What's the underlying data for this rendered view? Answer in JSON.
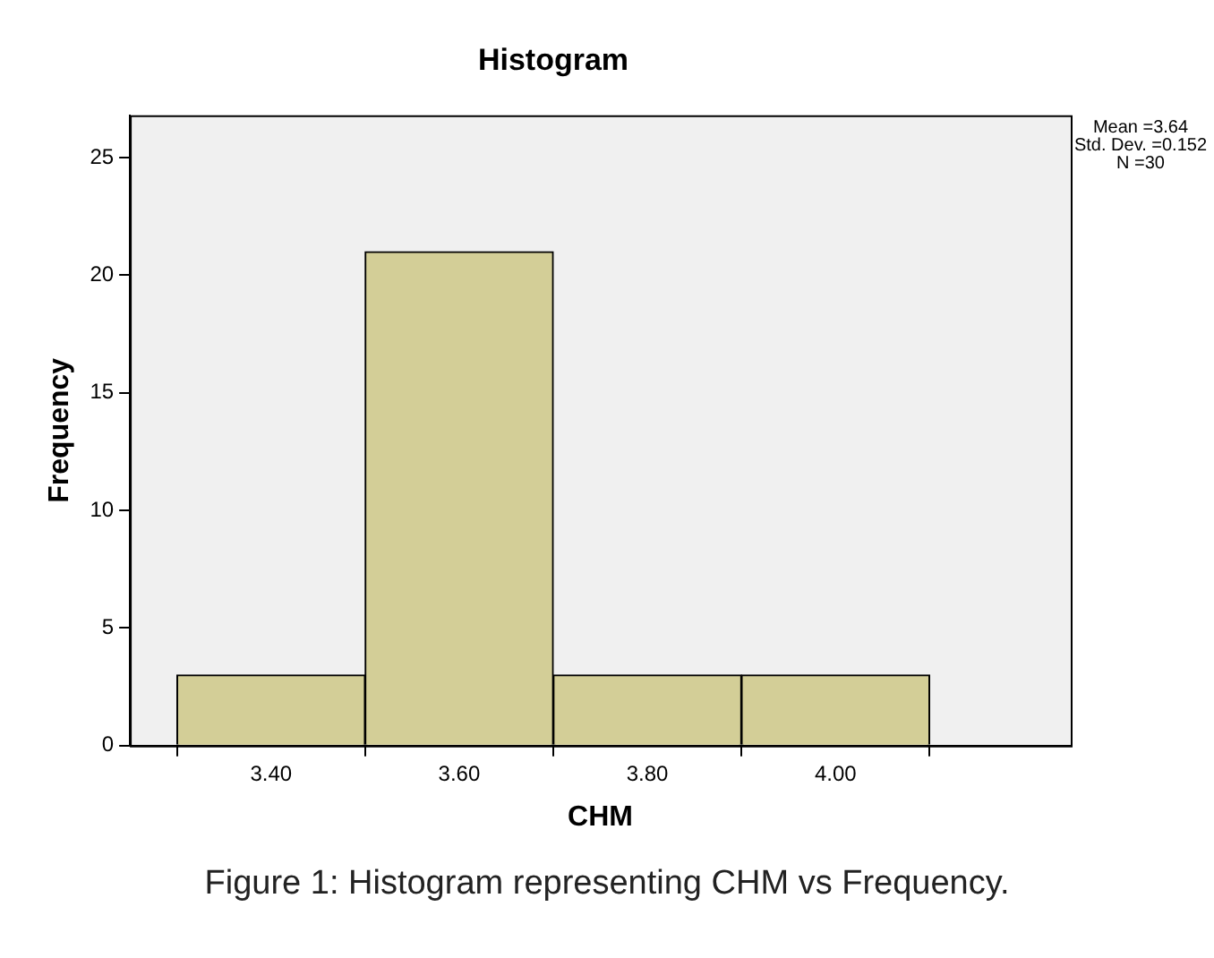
{
  "chart_data": {
    "type": "histogram",
    "title": "Histogram",
    "xlabel": "CHM",
    "ylabel": "Frequency",
    "bins": [
      3.3,
      3.5,
      3.7,
      3.9,
      4.1
    ],
    "values": [
      3,
      21,
      3,
      3
    ],
    "color": "#d3ce97",
    "xlim": [
      3.25,
      4.25
    ],
    "xticks": [
      {
        "value": 3.4,
        "label": "3.40"
      },
      {
        "value": 3.6,
        "label": "3.60"
      },
      {
        "value": 3.8,
        "label": "3.80"
      },
      {
        "value": 4.0,
        "label": "4.00"
      }
    ],
    "ylim": [
      0,
      26.8
    ],
    "yticks": [
      0,
      5,
      10,
      15,
      20,
      25
    ],
    "grid": false,
    "legend": false,
    "annotations": [
      "Mean =3.64",
      "Std. Dev. =0.152",
      "N =30",
      "Figure 1: Histogram representing CHM vs Frequency."
    ]
  }
}
